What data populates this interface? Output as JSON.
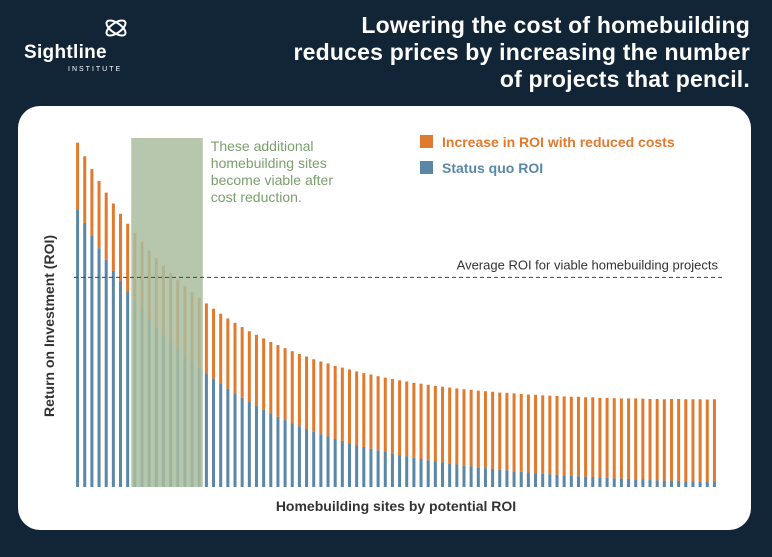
{
  "logo": {
    "name": "Sightline",
    "subtitle": "INSTITUTE"
  },
  "headline": "Lowering the cost of homebuilding reduces prices by increasing the number of projects that pencil.",
  "colors": {
    "background": "#112537",
    "panel": "#ffffff",
    "increase": "#e07a2e",
    "status_quo": "#5b87a6",
    "highlight": "#a9bd9f",
    "highlight_text": "#7a9f6d",
    "label_text": "#333333"
  },
  "chart_data": {
    "type": "bar",
    "stacked": true,
    "title": "",
    "xlabel": "Homebuilding sites by potential ROI",
    "ylabel": "Return on Investment (ROI)",
    "grid": false,
    "legend_position": "top-right",
    "series": [
      {
        "name": "Status quo ROI",
        "values": [
          100.0,
          95.1,
          90.4,
          86.0,
          81.8,
          77.8,
          74.0,
          70.4,
          67.0,
          63.7,
          60.6,
          57.7,
          54.9,
          52.3,
          49.8,
          47.4,
          45.1,
          43.0,
          40.9,
          39.0,
          37.1,
          35.4,
          33.7,
          32.1,
          30.6,
          29.2,
          27.8,
          26.5,
          25.3,
          24.1,
          23.0,
          21.9,
          20.9,
          19.9,
          19.0,
          18.2,
          17.3,
          16.6,
          15.8,
          15.1,
          14.4,
          13.8,
          13.2,
          12.6,
          12.0,
          11.5,
          11.0,
          10.5,
          10.1,
          9.6,
          9.2,
          8.8,
          8.4,
          8.1,
          7.7,
          7.4,
          7.1,
          6.8,
          6.5,
          6.2,
          6.0,
          5.7,
          5.5,
          5.2,
          5.0,
          4.8,
          4.6,
          4.4,
          4.2,
          4.0,
          3.9,
          3.7,
          3.6,
          3.4,
          3.3,
          3.1,
          3.0,
          2.9,
          2.8,
          2.7,
          2.5,
          2.4,
          2.3,
          2.3,
          2.2,
          2.1,
          2.0,
          1.9,
          1.8,
          1.8
        ]
      },
      {
        "name": "Increase in ROI with reduced costs",
        "values": [
          24.0,
          24.0,
          24.1,
          24.2,
          24.2,
          24.3,
          24.4,
          24.4,
          24.5,
          24.6,
          24.6,
          24.7,
          24.8,
          24.8,
          24.9,
          25.0,
          25.0,
          25.1,
          25.2,
          25.2,
          25.3,
          25.3,
          25.4,
          25.5,
          25.5,
          25.6,
          25.7,
          25.7,
          25.8,
          25.9,
          25.9,
          26.0,
          26.1,
          26.1,
          26.2,
          26.3,
          26.3,
          26.4,
          26.5,
          26.5,
          26.6,
          26.7,
          26.7,
          26.8,
          26.9,
          26.9,
          27.0,
          27.0,
          27.1,
          27.2,
          27.2,
          27.3,
          27.4,
          27.4,
          27.5,
          27.6,
          27.6,
          27.7,
          27.8,
          27.8,
          27.9,
          28.0,
          28.0,
          28.1,
          28.2,
          28.2,
          28.3,
          28.4,
          28.4,
          28.5,
          28.6,
          28.6,
          28.7,
          28.7,
          28.8,
          28.9,
          28.9,
          29.0,
          29.1,
          29.1,
          29.2,
          29.3,
          29.3,
          29.4,
          29.5,
          29.5,
          29.6,
          29.7,
          29.7,
          29.8
        ]
      }
    ],
    "ylim": [
      0,
      130
    ],
    "reference_line": {
      "label": "Average ROI for viable homebuilding projects",
      "value": 75.5
    },
    "highlight": {
      "label": "These additional homebuilding sites become viable after cost reduction.",
      "start_index": 8,
      "end_index": 17
    }
  }
}
